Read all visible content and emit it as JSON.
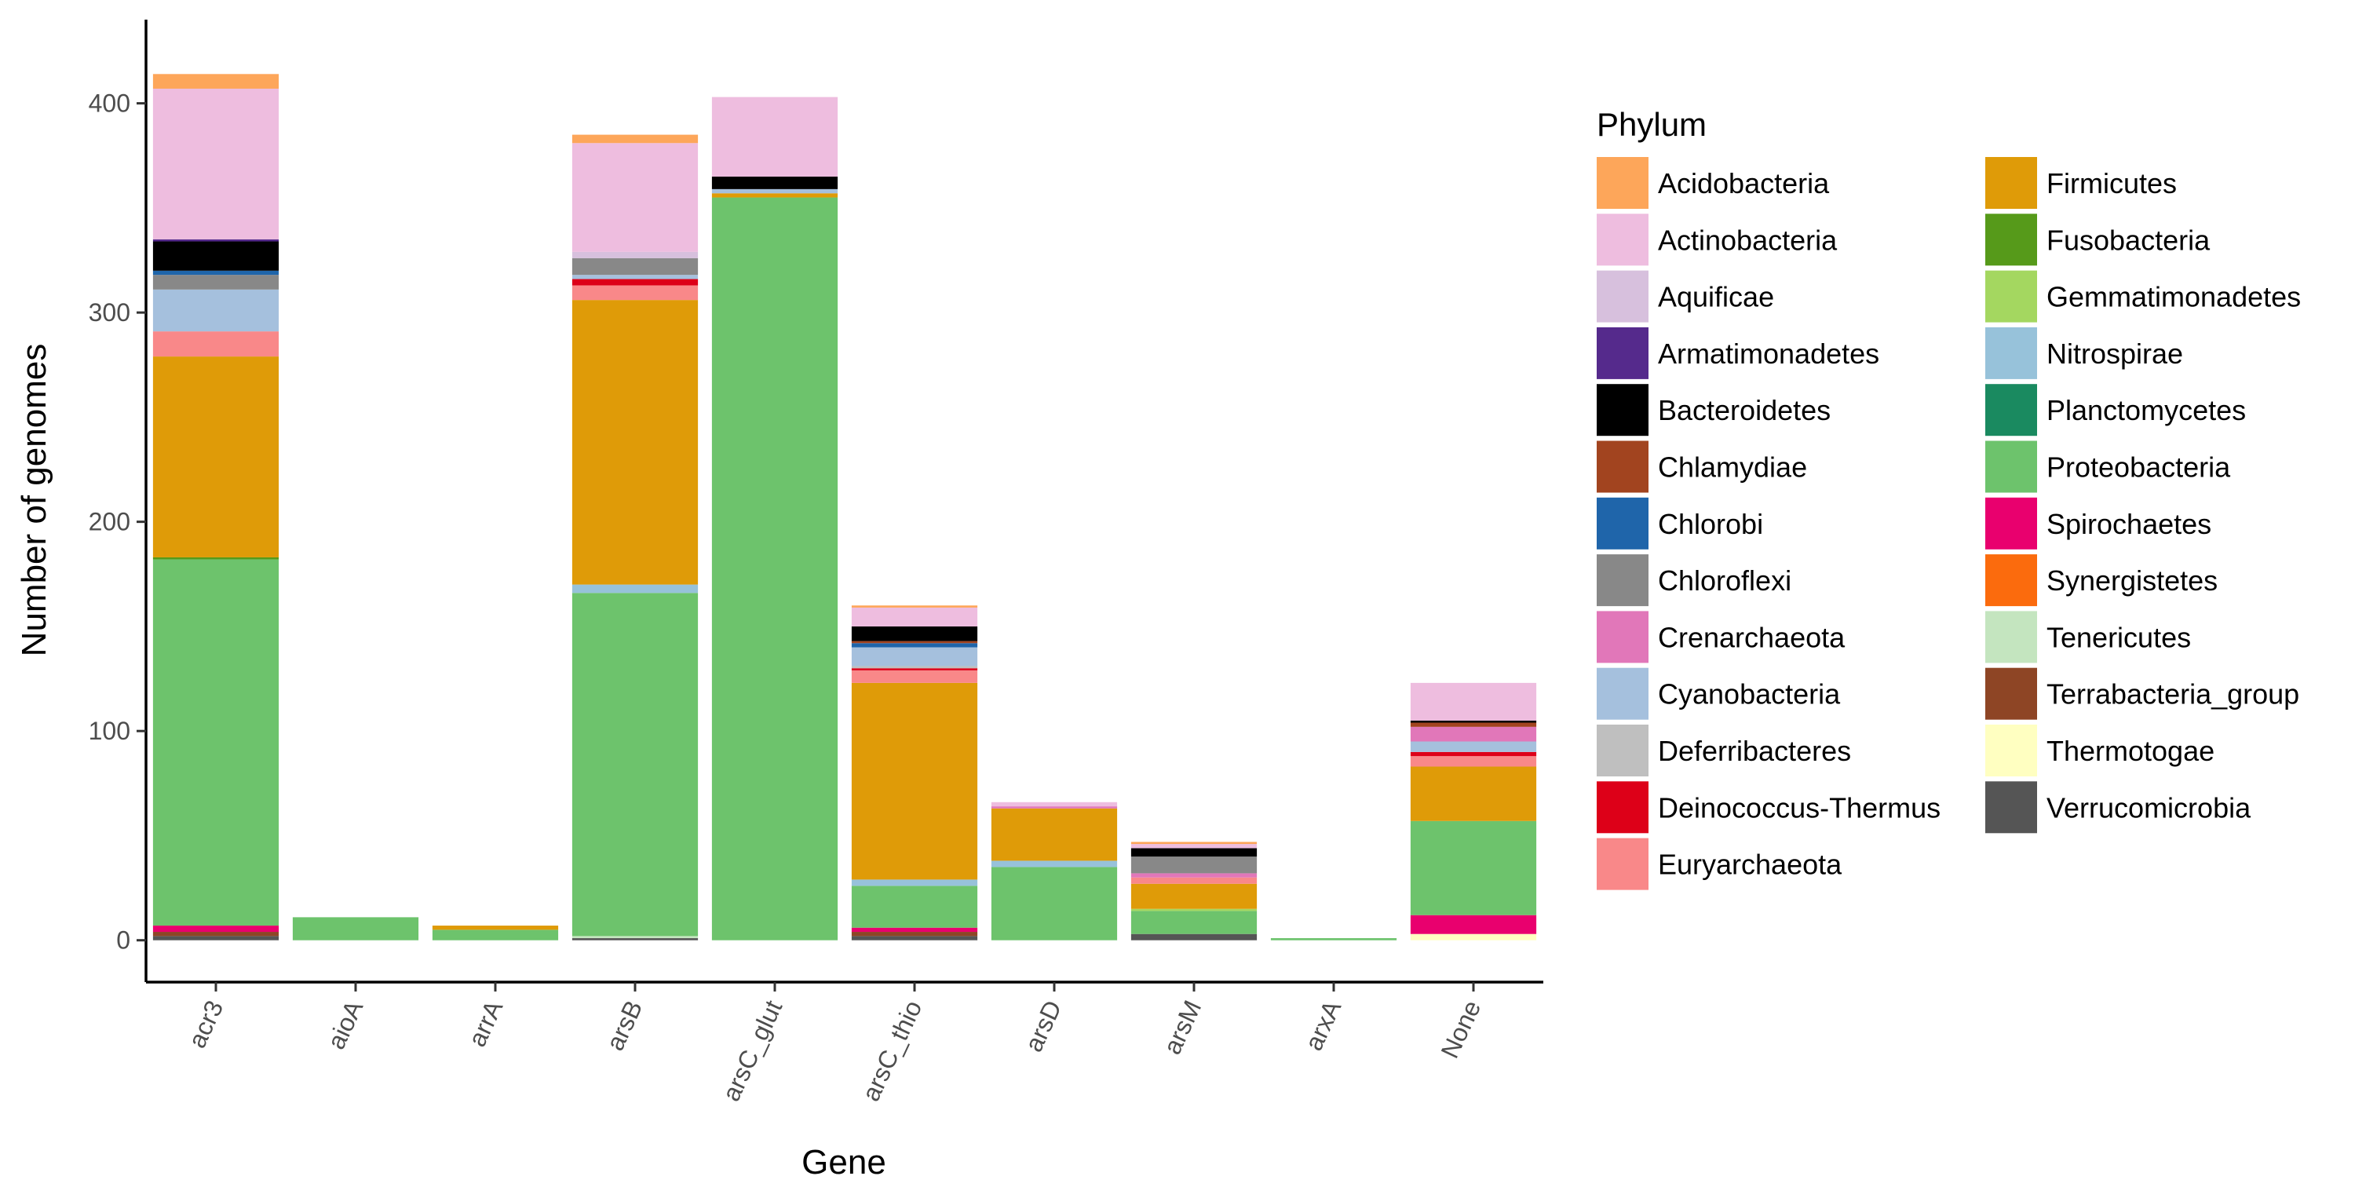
{
  "chart_data": {
    "type": "bar",
    "stacked": true,
    "xlabel": "Gene",
    "ylabel": "Number of genomes",
    "ylim": [
      -20,
      440
    ],
    "yticks": [
      0,
      100,
      200,
      300,
      400
    ],
    "categories": [
      "acr3",
      "aioA",
      "arrA",
      "arsB",
      "arsC_glut",
      "arsC_thio",
      "arsD",
      "arsM",
      "arxA",
      "None"
    ],
    "legend": {
      "title": "Phylum",
      "position": "right",
      "columns": 2
    },
    "grid": false,
    "series": [
      {
        "name": "Acidobacteria",
        "color": "#FDA65A",
        "values": [
          7,
          0,
          0,
          4,
          0,
          1,
          0,
          1,
          0,
          0
        ]
      },
      {
        "name": "Actinobacteria",
        "color": "#EEBDDF",
        "values": [
          72,
          0,
          0,
          52,
          38,
          9,
          2,
          2,
          0,
          18
        ]
      },
      {
        "name": "Aquificae",
        "color": "#D7C0DD",
        "values": [
          0,
          0,
          0,
          3,
          0,
          0,
          0,
          0,
          0,
          0
        ]
      },
      {
        "name": "Armatimonadetes",
        "color": "#552A8C",
        "values": [
          1,
          0,
          0,
          0,
          0,
          0,
          0,
          0,
          0,
          0
        ]
      },
      {
        "name": "Bacteroidetes",
        "color": "#000000",
        "values": [
          14,
          0,
          0,
          0,
          6,
          7,
          0,
          4,
          0,
          1
        ]
      },
      {
        "name": "Chlamydiae",
        "color": "#A2441F",
        "values": [
          0,
          0,
          0,
          0,
          0,
          1,
          0,
          0,
          0,
          2
        ]
      },
      {
        "name": "Chlorobi",
        "color": "#1F65AA",
        "values": [
          2,
          0,
          0,
          0,
          0,
          2,
          0,
          0,
          0,
          0
        ]
      },
      {
        "name": "Chloroflexi",
        "color": "#888888",
        "values": [
          7,
          0,
          0,
          8,
          0,
          0,
          0,
          8,
          0,
          0
        ]
      },
      {
        "name": "Crenarchaeota",
        "color": "#E177B9",
        "values": [
          0,
          0,
          0,
          0,
          0,
          0,
          1,
          2,
          0,
          7
        ]
      },
      {
        "name": "Cyanobacteria",
        "color": "#A5C0DD",
        "values": [
          20,
          0,
          0,
          2,
          2,
          9,
          0,
          0,
          0,
          5
        ]
      },
      {
        "name": "Deferribacteres",
        "color": "#BFBFBF",
        "values": [
          0,
          0,
          0,
          0,
          0,
          1,
          0,
          0,
          0,
          0
        ]
      },
      {
        "name": "Deinococcus-Thermus",
        "color": "#DD0018",
        "values": [
          0,
          0,
          0,
          3,
          0,
          1,
          0,
          0,
          0,
          2
        ]
      },
      {
        "name": "Euryarchaeota",
        "color": "#F98889",
        "values": [
          12,
          0,
          0,
          7,
          0,
          6,
          0,
          3,
          0,
          5
        ]
      },
      {
        "name": "Firmicutes",
        "color": "#DF9B08",
        "values": [
          96,
          0,
          2,
          136,
          2,
          94,
          25,
          12,
          0,
          26
        ]
      },
      {
        "name": "Fusobacteria",
        "color": "#569A1A",
        "values": [
          1,
          0,
          0,
          0,
          0,
          0,
          0,
          0,
          0,
          0
        ]
      },
      {
        "name": "Gemmatimonadetes",
        "color": "#A4D760",
        "values": [
          0,
          0,
          0,
          0,
          0,
          0,
          0,
          1,
          0,
          0
        ]
      },
      {
        "name": "Nitrospirae",
        "color": "#97C2DA",
        "values": [
          0,
          0,
          0,
          4,
          0,
          3,
          3,
          0,
          0,
          0
        ]
      },
      {
        "name": "Planctomycetes",
        "color": "#1A8A60",
        "values": [
          0,
          0,
          0,
          0,
          0,
          0,
          0,
          0,
          0,
          0
        ]
      },
      {
        "name": "Proteobacteria",
        "color": "#6DC36C",
        "values": [
          175,
          11,
          5,
          164,
          355,
          20,
          35,
          11,
          1,
          45
        ]
      },
      {
        "name": "Spirochaetes",
        "color": "#E9006E",
        "values": [
          3,
          0,
          0,
          0,
          0,
          2,
          0,
          0,
          0,
          9
        ]
      },
      {
        "name": "Synergistetes",
        "color": "#FB6B0D",
        "values": [
          0,
          0,
          0,
          0,
          0,
          0,
          0,
          0,
          0,
          0
        ]
      },
      {
        "name": "Tenericutes",
        "color": "#C4E5BF",
        "values": [
          0,
          0,
          0,
          1,
          0,
          0,
          0,
          0,
          0,
          0
        ]
      },
      {
        "name": "Terrabacteria_group",
        "color": "#8E4525",
        "values": [
          2,
          0,
          0,
          0,
          0,
          2,
          0,
          0,
          0,
          0
        ]
      },
      {
        "name": "Thermotogae",
        "color": "#FFFFC1",
        "values": [
          0,
          0,
          0,
          0,
          0,
          0,
          0,
          0,
          0,
          3
        ]
      },
      {
        "name": "Verrucomicrobia",
        "color": "#555555",
        "values": [
          2,
          0,
          0,
          1,
          0,
          2,
          0,
          3,
          0,
          0
        ]
      }
    ]
  }
}
